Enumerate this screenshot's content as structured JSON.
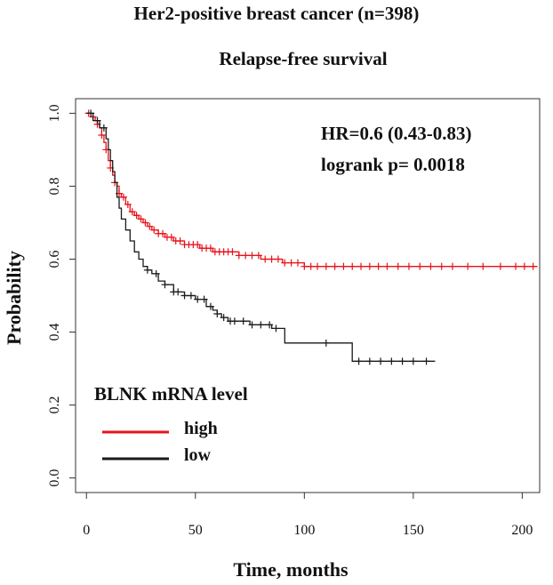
{
  "chart_data": {
    "type": "line",
    "title": "Her2-positive breast cancer (n=398)",
    "subtitle": "Relapse-free survival",
    "xlabel": "Time, months",
    "ylabel": "Probability",
    "xlim": [
      -5,
      208
    ],
    "ylim": [
      -0.04,
      1.04
    ],
    "x_ticks": [
      0,
      50,
      100,
      150,
      200
    ],
    "y_ticks": [
      0.0,
      0.2,
      0.4,
      0.6,
      0.8,
      1.0
    ],
    "annotations": [
      "HR=0.6 (0.43-0.83)",
      "logrank p= 0.0018"
    ],
    "legend": {
      "title": "BLNK mRNA level",
      "placement": "bottom-left",
      "entries": [
        "high",
        "low"
      ]
    },
    "series": [
      {
        "name": "high",
        "color": "#e8121a",
        "steps": [
          [
            0,
            1.0
          ],
          [
            2,
            0.99
          ],
          [
            4,
            0.98
          ],
          [
            5,
            0.97
          ],
          [
            6,
            0.96
          ],
          [
            7,
            0.94
          ],
          [
            8,
            0.92
          ],
          [
            9,
            0.9
          ],
          [
            10,
            0.87
          ],
          [
            11,
            0.85
          ],
          [
            12,
            0.83
          ],
          [
            13,
            0.81
          ],
          [
            14,
            0.8
          ],
          [
            15,
            0.78
          ],
          [
            16,
            0.77
          ],
          [
            18,
            0.75
          ],
          [
            20,
            0.73
          ],
          [
            22,
            0.72
          ],
          [
            24,
            0.71
          ],
          [
            26,
            0.7
          ],
          [
            28,
            0.69
          ],
          [
            30,
            0.68
          ],
          [
            33,
            0.67
          ],
          [
            36,
            0.66
          ],
          [
            40,
            0.65
          ],
          [
            45,
            0.64
          ],
          [
            52,
            0.63
          ],
          [
            58,
            0.62
          ],
          [
            70,
            0.61
          ],
          [
            80,
            0.6
          ],
          [
            90,
            0.59
          ],
          [
            100,
            0.58
          ],
          [
            207,
            0.58
          ]
        ],
        "censor_x": [
          1,
          3,
          5,
          7,
          9,
          11,
          13,
          15,
          17,
          19,
          21,
          23,
          25,
          27,
          29,
          31,
          33,
          35,
          37,
          39,
          41,
          43,
          45,
          47,
          49,
          51,
          53,
          55,
          57,
          59,
          61,
          63,
          65,
          67,
          70,
          73,
          76,
          79,
          82,
          85,
          88,
          91,
          94,
          97,
          100,
          103,
          106,
          110,
          114,
          118,
          122,
          126,
          130,
          134,
          138,
          143,
          148,
          153,
          158,
          163,
          168,
          175,
          182,
          190,
          197,
          201,
          205
        ]
      },
      {
        "name": "low",
        "color": "#1a1a1a",
        "steps": [
          [
            0,
            1.0
          ],
          [
            3,
            0.98
          ],
          [
            6,
            0.96
          ],
          [
            9,
            0.93
          ],
          [
            10,
            0.9
          ],
          [
            11,
            0.87
          ],
          [
            12,
            0.84
          ],
          [
            13,
            0.81
          ],
          [
            14,
            0.77
          ],
          [
            15,
            0.74
          ],
          [
            16,
            0.71
          ],
          [
            18,
            0.68
          ],
          [
            20,
            0.65
          ],
          [
            22,
            0.62
          ],
          [
            24,
            0.6
          ],
          [
            26,
            0.58
          ],
          [
            28,
            0.57
          ],
          [
            30,
            0.56
          ],
          [
            33,
            0.54
          ],
          [
            36,
            0.53
          ],
          [
            40,
            0.51
          ],
          [
            45,
            0.5
          ],
          [
            50,
            0.49
          ],
          [
            55,
            0.47
          ],
          [
            58,
            0.46
          ],
          [
            60,
            0.45
          ],
          [
            62,
            0.44
          ],
          [
            65,
            0.43
          ],
          [
            75,
            0.42
          ],
          [
            85,
            0.41
          ],
          [
            91,
            0.37
          ],
          [
            122,
            0.32
          ],
          [
            160,
            0.32
          ]
        ],
        "censor_x": [
          2,
          5,
          8,
          28,
          32,
          36,
          40,
          42,
          45,
          48,
          51,
          54,
          57,
          60,
          63,
          66,
          68,
          72,
          76,
          80,
          84,
          87,
          110,
          125,
          130,
          135,
          140,
          145,
          150,
          156
        ]
      }
    ]
  }
}
